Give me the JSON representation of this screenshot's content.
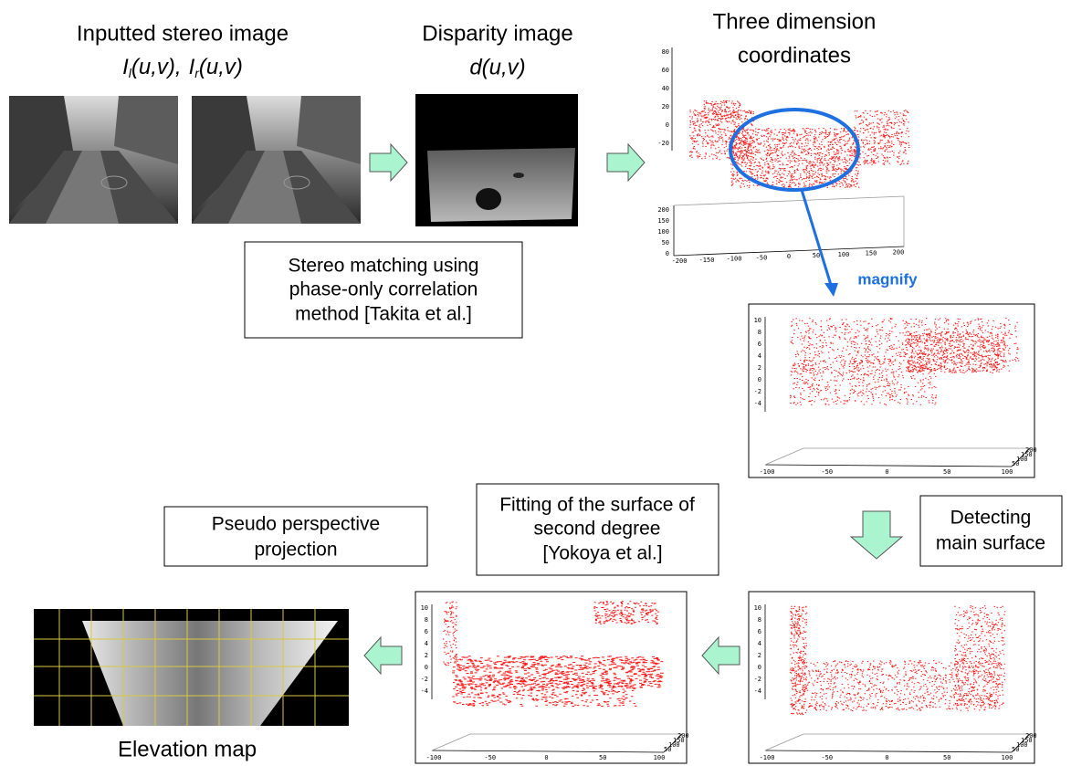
{
  "stereo": {
    "title": "Inputted stereo image",
    "formula_left": {
      "base": "I",
      "sub": "l",
      "args": "(u,v),"
    },
    "formula_right": {
      "base": "I",
      "sub": "r",
      "args": "(u,v)"
    }
  },
  "disparity": {
    "title": "Disparity image",
    "formula": "d(u,v)"
  },
  "coordinates": {
    "title": [
      "Three dimension",
      "coordinates"
    ],
    "z_ticks": [
      80,
      60,
      40,
      20,
      0,
      -20
    ],
    "y_ticks": [
      200,
      150,
      100,
      50,
      0
    ],
    "x_ticks": [
      -200,
      -150,
      -100,
      -50,
      0,
      50,
      100,
      150,
      200
    ]
  },
  "magnify": "magnify",
  "plots": [
    {
      "z_ticks": [
        10,
        8,
        6,
        4,
        2,
        0,
        -2,
        -4
      ],
      "x_ticks": [
        -100,
        -50,
        0,
        50,
        100
      ],
      "y_ticks": [
        200,
        150,
        100,
        50
      ]
    },
    {
      "z_ticks": [
        10,
        8,
        6,
        4,
        2,
        0,
        -2,
        -4
      ],
      "x_ticks": [
        -100,
        -50,
        0,
        50,
        100
      ],
      "y_ticks": [
        200,
        150,
        100,
        50
      ]
    },
    {
      "z_ticks": [
        10,
        8,
        6,
        4,
        2,
        0,
        -2,
        -4
      ],
      "x_ticks": [
        -100,
        -50,
        0,
        50,
        100
      ],
      "y_ticks": [
        200,
        150,
        100,
        50
      ]
    }
  ],
  "boxes": {
    "stereo_matching": [
      "Stereo matching using",
      "phase-only correlation",
      "method [Takita et al.]"
    ],
    "detecting": [
      "Detecting",
      "main surface"
    ],
    "fitting": [
      "Fitting of the surface of",
      "second degree",
      "[Yokoya et al.]"
    ],
    "pseudo": [
      "Pseudo perspective",
      "projection"
    ]
  },
  "elevation_map": "Elevation map"
}
